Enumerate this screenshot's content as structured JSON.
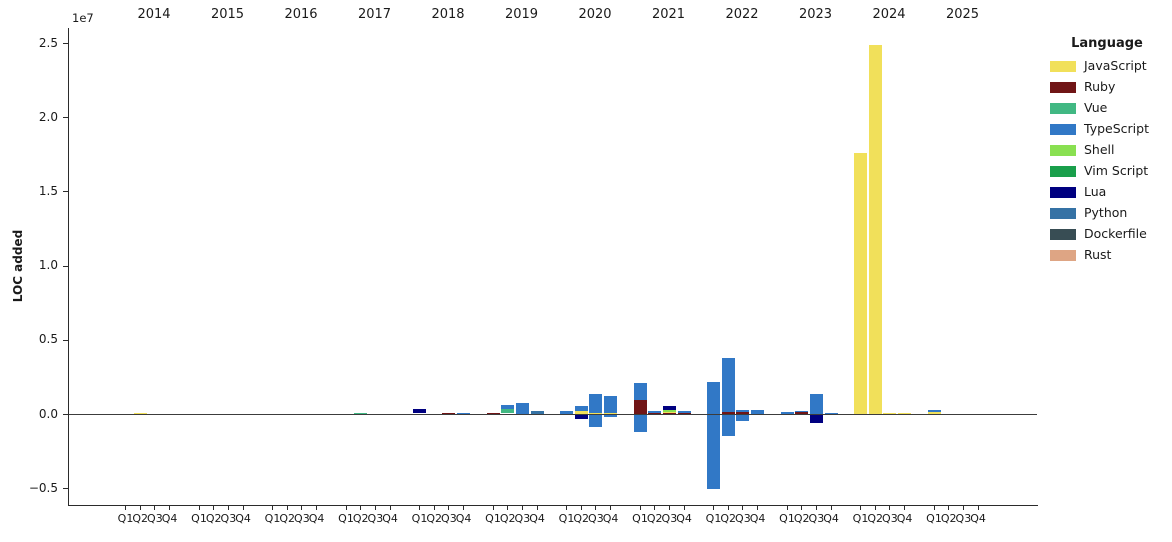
{
  "axes": {
    "ylabel": "LOC added",
    "offset_label": "1e7",
    "years": [
      "2014",
      "2015",
      "2016",
      "2017",
      "2018",
      "2019",
      "2020",
      "2021",
      "2022",
      "2023",
      "2024",
      "2025"
    ],
    "quarter_labels": [
      "Q1",
      "Q2",
      "Q3",
      "Q4"
    ],
    "y_ticks": [
      {
        "label": "2.5",
        "value": 25000000
      },
      {
        "label": "2.0",
        "value": 20000000
      },
      {
        "label": "1.5",
        "value": 15000000
      },
      {
        "label": "1.0",
        "value": 10000000
      },
      {
        "label": "0.5",
        "value": 5000000
      },
      {
        "label": "0.0",
        "value": 0
      },
      {
        "label": "−0.5",
        "value": -5000000
      }
    ]
  },
  "legend": {
    "title": "Language"
  },
  "chart_data": {
    "type": "bar",
    "stacked": true,
    "title": "",
    "xlabel": "",
    "ylabel": "LOC added",
    "ylim": [
      -6100000,
      26100000
    ],
    "grid": false,
    "legend_position": "right",
    "x_structure": "quarters Q1-Q4 nested under years 2014-2025, year labels on top axis, quarter labels on bottom axis",
    "languages": [
      {
        "name": "JavaScript",
        "color": "#f1e05a"
      },
      {
        "name": "Ruby",
        "color": "#701516"
      },
      {
        "name": "Vue",
        "color": "#41b883"
      },
      {
        "name": "TypeScript",
        "color": "#3178c6"
      },
      {
        "name": "Shell",
        "color": "#89e051"
      },
      {
        "name": "Vim Script",
        "color": "#199f4b"
      },
      {
        "name": "Lua",
        "color": "#000080"
      },
      {
        "name": "Python",
        "color": "#3572a5"
      },
      {
        "name": "Dockerfile",
        "color": "#384d54"
      },
      {
        "name": "Rust",
        "color": "#dea584"
      }
    ],
    "bars": [
      {
        "year": "2014",
        "quarter": "Q2",
        "segments": [
          {
            "language": "JavaScript",
            "value": 100000
          }
        ]
      },
      {
        "year": "2017",
        "quarter": "Q2",
        "segments": [
          {
            "language": "Vue",
            "value": 130000
          }
        ]
      },
      {
        "year": "2018",
        "quarter": "Q1",
        "segments": [
          {
            "language": "Shell",
            "value": 60000
          },
          {
            "language": "Lua",
            "value": 300000
          }
        ]
      },
      {
        "year": "2018",
        "quarter": "Q3",
        "segments": [
          {
            "language": "Ruby",
            "value": 130000
          }
        ]
      },
      {
        "year": "2018",
        "quarter": "Q4",
        "segments": [
          {
            "language": "TypeScript",
            "value": 130000
          }
        ]
      },
      {
        "year": "2019",
        "quarter": "Q1",
        "segments": [
          {
            "language": "Ruby",
            "value": 100000
          }
        ]
      },
      {
        "year": "2019",
        "quarter": "Q2",
        "segments": [
          {
            "language": "Vim Script",
            "value": 60000
          },
          {
            "language": "Vue",
            "value": 300000
          },
          {
            "language": "TypeScript",
            "value": 250000
          }
        ]
      },
      {
        "year": "2019",
        "quarter": "Q3",
        "segments": [
          {
            "language": "TypeScript",
            "value": 800000
          }
        ]
      },
      {
        "year": "2019",
        "quarter": "Q4",
        "segments": [
          {
            "language": "Python",
            "value": 250000
          }
        ]
      },
      {
        "year": "2020",
        "quarter": "Q1",
        "segments": [
          {
            "language": "TypeScript",
            "value": 250000
          }
        ]
      },
      {
        "year": "2020",
        "quarter": "Q2",
        "segments": [
          {
            "language": "JavaScript",
            "value": 220000
          },
          {
            "language": "TypeScript",
            "value": 320000
          },
          {
            "language": "Lua",
            "value": -270000
          }
        ]
      },
      {
        "year": "2020",
        "quarter": "Q3",
        "segments": [
          {
            "language": "JavaScript",
            "value": 90000
          },
          {
            "language": "TypeScript",
            "value": 1260000
          },
          {
            "language": "TypeScript",
            "value": -860000
          }
        ]
      },
      {
        "year": "2020",
        "quarter": "Q4",
        "segments": [
          {
            "language": "JavaScript",
            "value": 90000
          },
          {
            "language": "TypeScript",
            "value": 1190000
          },
          {
            "language": "TypeScript",
            "value": -200000
          }
        ]
      },
      {
        "year": "2021",
        "quarter": "Q1",
        "segments": [
          {
            "language": "Ruby",
            "value": 1010000
          },
          {
            "language": "TypeScript",
            "value": 1080000
          },
          {
            "language": "TypeScript",
            "value": -1210000
          }
        ]
      },
      {
        "year": "2021",
        "quarter": "Q2",
        "segments": [
          {
            "language": "Ruby",
            "value": 130000
          },
          {
            "language": "TypeScript",
            "value": 130000
          }
        ]
      },
      {
        "year": "2021",
        "quarter": "Q3",
        "segments": [
          {
            "language": "Ruby",
            "value": 130000
          },
          {
            "language": "JavaScript",
            "value": 70000
          },
          {
            "language": "Shell",
            "value": 70000
          },
          {
            "language": "Lua",
            "value": 270000
          }
        ]
      },
      {
        "year": "2021",
        "quarter": "Q4",
        "segments": [
          {
            "language": "Ruby",
            "value": 130000
          },
          {
            "language": "TypeScript",
            "value": 130000
          }
        ]
      },
      {
        "year": "2022",
        "quarter": "Q1",
        "segments": [
          {
            "language": "TypeScript",
            "value": 2200000
          },
          {
            "language": "TypeScript",
            "value": -5050000
          }
        ]
      },
      {
        "year": "2022",
        "quarter": "Q2",
        "segments": [
          {
            "language": "Ruby",
            "value": 150000
          },
          {
            "language": "TypeScript",
            "value": 3670000
          },
          {
            "language": "TypeScript",
            "value": -1460000
          }
        ]
      },
      {
        "year": "2022",
        "quarter": "Q3",
        "segments": [
          {
            "language": "Ruby",
            "value": 150000
          },
          {
            "language": "TypeScript",
            "value": 180000
          },
          {
            "language": "TypeScript",
            "value": -450000
          }
        ]
      },
      {
        "year": "2022",
        "quarter": "Q4",
        "segments": [
          {
            "language": "TypeScript",
            "value": 270000
          }
        ]
      },
      {
        "year": "2023",
        "quarter": "Q1",
        "segments": [
          {
            "language": "TypeScript",
            "value": 180000
          }
        ]
      },
      {
        "year": "2023",
        "quarter": "Q2",
        "segments": [
          {
            "language": "Ruby",
            "value": 150000
          },
          {
            "language": "TypeScript",
            "value": 90000
          }
        ]
      },
      {
        "year": "2023",
        "quarter": "Q3",
        "segments": [
          {
            "language": "TypeScript",
            "value": 1370000
          },
          {
            "language": "Lua",
            "value": -600000
          }
        ]
      },
      {
        "year": "2023",
        "quarter": "Q4",
        "segments": [
          {
            "language": "TypeScript",
            "value": 130000
          }
        ]
      },
      {
        "year": "2024",
        "quarter": "Q1",
        "segments": [
          {
            "language": "JavaScript",
            "value": 17600000
          }
        ]
      },
      {
        "year": "2024",
        "quarter": "Q2",
        "segments": [
          {
            "language": "JavaScript",
            "value": 24900000
          }
        ]
      },
      {
        "year": "2024",
        "quarter": "Q3",
        "segments": [
          {
            "language": "JavaScript",
            "value": 100000
          }
        ]
      },
      {
        "year": "2024",
        "quarter": "Q4",
        "segments": [
          {
            "language": "JavaScript",
            "value": 100000
          }
        ]
      },
      {
        "year": "2025",
        "quarter": "Q1",
        "segments": [
          {
            "language": "JavaScript",
            "value": 150000
          },
          {
            "language": "TypeScript",
            "value": 130000
          }
        ]
      }
    ]
  }
}
